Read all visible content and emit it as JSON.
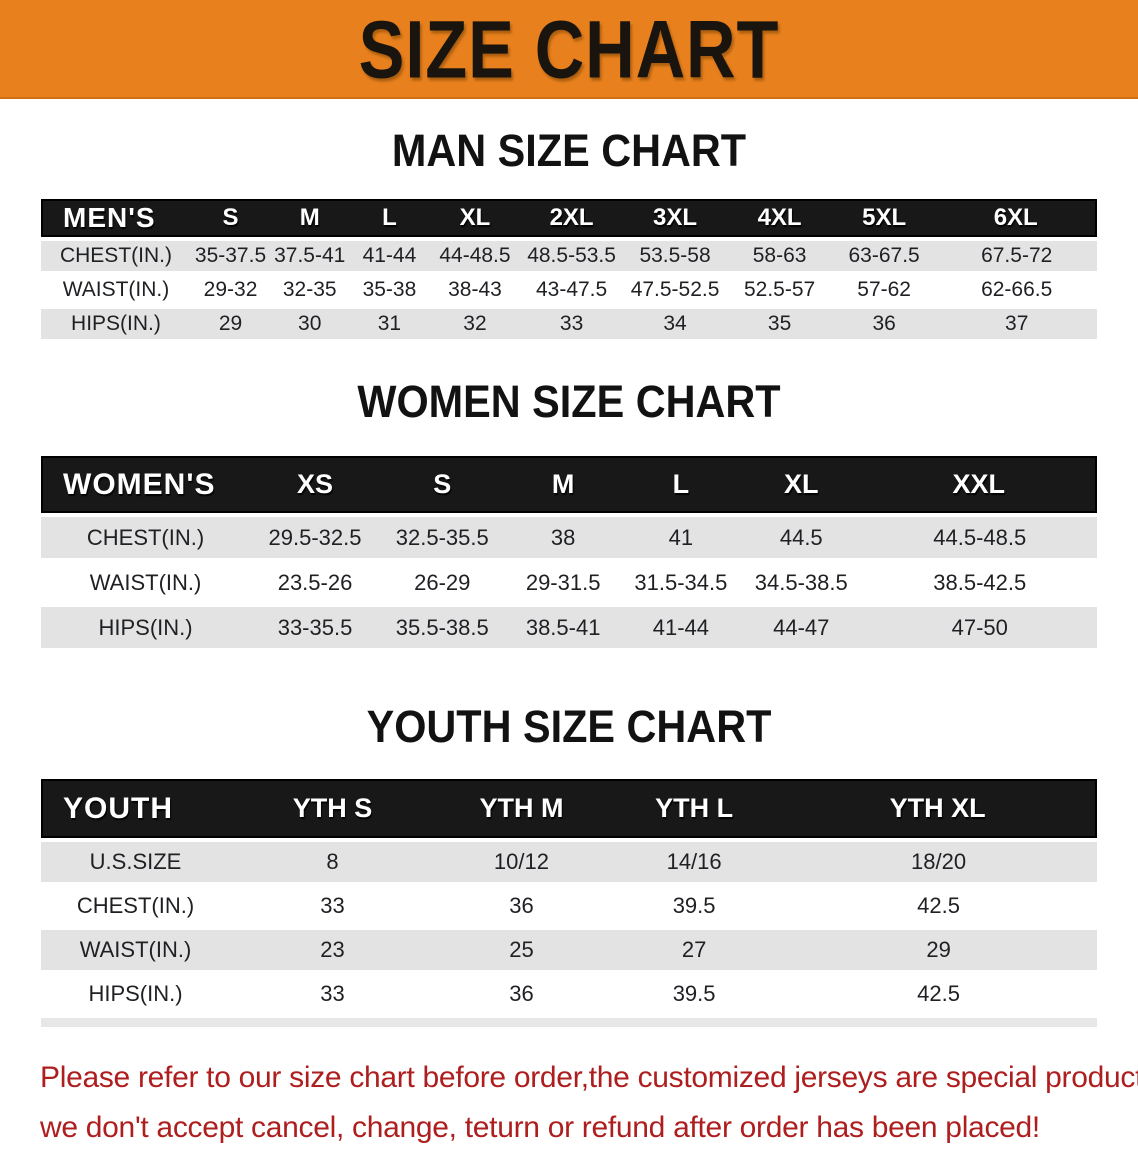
{
  "banner": {
    "title": "SIZE CHART",
    "bg_color": "#e8811d",
    "text_color": "#1a140e"
  },
  "sections": [
    {
      "heading": "MAN SIZE CHART",
      "table": {
        "header_label": "MEN'S",
        "columns": [
          "S",
          "M",
          "L",
          "XL",
          "2XL",
          "3XL",
          "4XL",
          "5XL",
          "6XL"
        ],
        "rows": [
          {
            "label": "CHEST(IN.)",
            "values": [
              "35-37.5",
              "37.5-41",
              "41-44",
              "44-48.5",
              "48.5-53.5",
              "53.5-58",
              "58-63",
              "63-67.5",
              "67.5-72"
            ]
          },
          {
            "label": "WAIST(IN.)",
            "values": [
              "29-32",
              "32-35",
              "35-38",
              "38-43",
              "43-47.5",
              "47.5-52.5",
              "52.5-57",
              "57-62",
              "62-66.5"
            ]
          },
          {
            "label": "HIPS(IN.)",
            "values": [
              "29",
              "30",
              "31",
              "32",
              "33",
              "34",
              "35",
              "36",
              "37"
            ]
          }
        ]
      }
    },
    {
      "heading": "WOMEN SIZE CHART",
      "table": {
        "header_label": "WOMEN'S",
        "columns": [
          "XS",
          "S",
          "M",
          "L",
          "XL",
          "XXL"
        ],
        "rows": [
          {
            "label": "CHEST(IN.)",
            "values": [
              "29.5-32.5",
              "32.5-35.5",
              "38",
              "41",
              "44.5",
              "44.5-48.5"
            ]
          },
          {
            "label": "WAIST(IN.)",
            "values": [
              "23.5-26",
              "26-29",
              "29-31.5",
              "31.5-34.5",
              "34.5-38.5",
              "38.5-42.5"
            ]
          },
          {
            "label": "HIPS(IN.)",
            "values": [
              "33-35.5",
              "35.5-38.5",
              "38.5-41",
              "41-44",
              "44-47",
              "47-50"
            ]
          }
        ]
      }
    },
    {
      "heading": "YOUTH SIZE CHART",
      "table": {
        "header_label": "YOUTH",
        "columns": [
          "YTH S",
          "YTH M",
          "YTH L",
          "YTH XL"
        ],
        "rows": [
          {
            "label": "U.S.SIZE",
            "values": [
              "8",
              "10/12",
              "14/16",
              "18/20"
            ]
          },
          {
            "label": "CHEST(IN.)",
            "values": [
              "33",
              "36",
              "39.5",
              "42.5"
            ]
          },
          {
            "label": "WAIST(IN.)",
            "values": [
              "23",
              "25",
              "27",
              "29"
            ]
          },
          {
            "label": "HIPS(IN.)",
            "values": [
              "33",
              "36",
              "39.5",
              "42.5"
            ]
          }
        ]
      }
    }
  ],
  "disclaimer": {
    "line1": "Please refer to our size chart before order,the customized jerseys are special products,",
    "line2": "we don't accept cancel, change, teturn or refund after order has been placed!",
    "text_color": "#ae1e1e"
  },
  "colors": {
    "banner_orange": "#e8811d",
    "table_header_black": "#181818",
    "row_stripe_gray": "#e3e3e4",
    "disclaimer_red": "#ae1e1e"
  }
}
